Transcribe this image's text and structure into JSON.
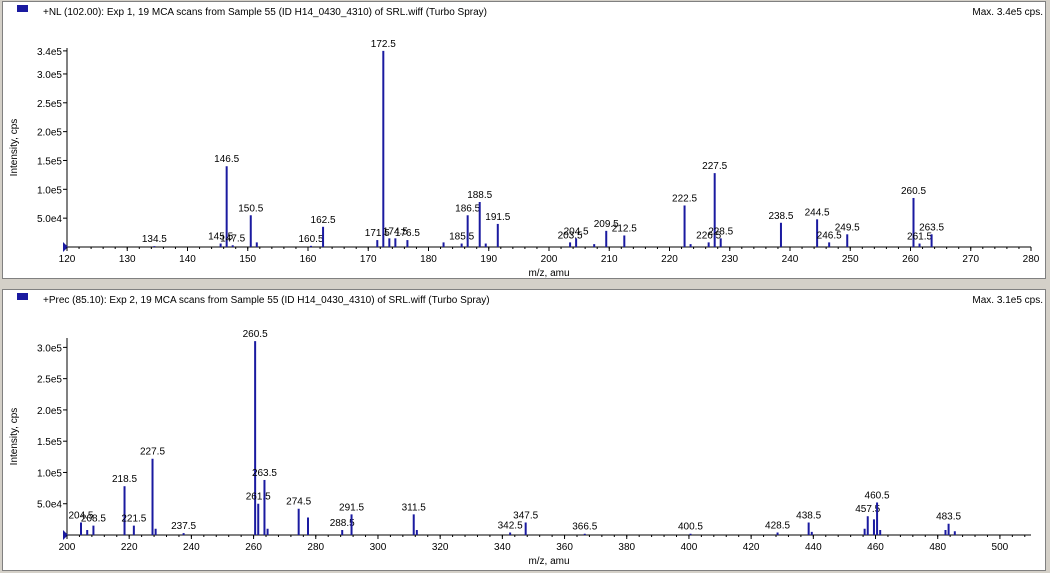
{
  "colors": {
    "peak": "#1a1aa0",
    "axis": "#000000",
    "marker": "#1a1aa0"
  },
  "chart_data": [
    {
      "type": "bar",
      "title": "+NL (102.00): Exp 1, 19 MCA scans from Sample 55 (ID H14_0430_4310) of SRL.wiff (Turbo Spray)",
      "max_label": "Max. 3.4e5 cps.",
      "xlabel": "m/z, amu",
      "ylabel": "Intensity, cps",
      "xlim": [
        120,
        280
      ],
      "ylim": [
        0,
        345000
      ],
      "xticks": [
        120,
        130,
        140,
        150,
        160,
        170,
        180,
        190,
        200,
        210,
        220,
        230,
        240,
        250,
        260,
        270,
        280
      ],
      "yticks": [
        {
          "v": 50000,
          "label": "5.0e4"
        },
        {
          "v": 100000,
          "label": "1.0e5"
        },
        {
          "v": 150000,
          "label": "1.5e5"
        },
        {
          "v": 200000,
          "label": "2.0e5"
        },
        {
          "v": 250000,
          "label": "2.5e5"
        },
        {
          "v": 300000,
          "label": "3.0e5"
        },
        {
          "v": 340000,
          "label": "3.4e5"
        }
      ],
      "peaks": [
        {
          "x": 134.5,
          "y": 1500,
          "label": "134.5"
        },
        {
          "x": 145.5,
          "y": 6000,
          "label": "145.5"
        },
        {
          "x": 146.5,
          "y": 140000,
          "label": "146.5"
        },
        {
          "x": 147.5,
          "y": 3000,
          "label": "147.5"
        },
        {
          "x": 150.5,
          "y": 55000,
          "label": "150.5"
        },
        {
          "x": 151.5,
          "y": 8000,
          "label": ""
        },
        {
          "x": 160.5,
          "y": 2000,
          "label": "160.5"
        },
        {
          "x": 162.5,
          "y": 35000,
          "label": "162.5"
        },
        {
          "x": 171.5,
          "y": 12000,
          "label": "171.5"
        },
        {
          "x": 172.5,
          "y": 340000,
          "label": "172.5"
        },
        {
          "x": 173.5,
          "y": 15000,
          "label": ""
        },
        {
          "x": 174.5,
          "y": 15000,
          "label": "174.5"
        },
        {
          "x": 176.5,
          "y": 12000,
          "label": "176.5"
        },
        {
          "x": 182.5,
          "y": 8000,
          "label": ""
        },
        {
          "x": 185.5,
          "y": 6000,
          "label": "185.5"
        },
        {
          "x": 186.5,
          "y": 55000,
          "label": "186.5"
        },
        {
          "x": 188.5,
          "y": 78000,
          "label": "188.5"
        },
        {
          "x": 189.5,
          "y": 6000,
          "label": ""
        },
        {
          "x": 191.5,
          "y": 40000,
          "label": "191.5"
        },
        {
          "x": 203.5,
          "y": 8000,
          "label": "203.5"
        },
        {
          "x": 204.5,
          "y": 15000,
          "label": "204.5"
        },
        {
          "x": 207.5,
          "y": 5000,
          "label": ""
        },
        {
          "x": 209.5,
          "y": 28000,
          "label": "209.5"
        },
        {
          "x": 212.5,
          "y": 20000,
          "label": "212.5"
        },
        {
          "x": 222.5,
          "y": 72000,
          "label": "222.5"
        },
        {
          "x": 223.5,
          "y": 5000,
          "label": ""
        },
        {
          "x": 226.5,
          "y": 8000,
          "label": "226.5"
        },
        {
          "x": 227.5,
          "y": 128000,
          "label": "227.5"
        },
        {
          "x": 228.5,
          "y": 15000,
          "label": "228.5"
        },
        {
          "x": 238.5,
          "y": 42000,
          "label": "238.5"
        },
        {
          "x": 244.5,
          "y": 48000,
          "label": "244.5"
        },
        {
          "x": 246.5,
          "y": 8000,
          "label": "246.5"
        },
        {
          "x": 249.5,
          "y": 22000,
          "label": "249.5"
        },
        {
          "x": 260.5,
          "y": 85000,
          "label": "260.5"
        },
        {
          "x": 261.5,
          "y": 6000,
          "label": "261.5"
        },
        {
          "x": 263.5,
          "y": 22000,
          "label": "263.5"
        }
      ]
    },
    {
      "type": "bar",
      "title": "+Prec (85.10): Exp 2, 19 MCA scans from Sample 55 (ID H14_0430_4310) of SRL.wiff (Turbo Spray)",
      "max_label": "Max. 3.1e5 cps.",
      "xlabel": "m/z, amu",
      "ylabel": "Intensity, cps",
      "xlim": [
        200,
        510
      ],
      "ylim": [
        0,
        315000
      ],
      "xticks": [
        200,
        220,
        240,
        260,
        280,
        300,
        320,
        340,
        360,
        380,
        400,
        420,
        440,
        460,
        480,
        500
      ],
      "yticks": [
        {
          "v": 50000,
          "label": "5.0e4"
        },
        {
          "v": 100000,
          "label": "1.0e5"
        },
        {
          "v": 150000,
          "label": "1.5e5"
        },
        {
          "v": 200000,
          "label": "2.0e5"
        },
        {
          "v": 250000,
          "label": "2.5e5"
        },
        {
          "v": 300000,
          "label": "3.0e5"
        }
      ],
      "peaks": [
        {
          "x": 204.5,
          "y": 20000,
          "label": "204.5"
        },
        {
          "x": 206.5,
          "y": 8000,
          "label": ""
        },
        {
          "x": 208.5,
          "y": 15000,
          "label": "208.5"
        },
        {
          "x": 218.5,
          "y": 78000,
          "label": "218.5"
        },
        {
          "x": 221.5,
          "y": 15000,
          "label": "221.5"
        },
        {
          "x": 227.5,
          "y": 122000,
          "label": "227.5"
        },
        {
          "x": 228.5,
          "y": 10000,
          "label": ""
        },
        {
          "x": 237.5,
          "y": 3000,
          "label": "237.5"
        },
        {
          "x": 260.5,
          "y": 310000,
          "label": "260.5"
        },
        {
          "x": 261.5,
          "y": 50000,
          "label": "261.5"
        },
        {
          "x": 263.5,
          "y": 88000,
          "label": "263.5"
        },
        {
          "x": 264.5,
          "y": 10000,
          "label": ""
        },
        {
          "x": 274.5,
          "y": 42000,
          "label": "274.5"
        },
        {
          "x": 277.5,
          "y": 28000,
          "label": ""
        },
        {
          "x": 288.5,
          "y": 8000,
          "label": "288.5"
        },
        {
          "x": 291.5,
          "y": 33000,
          "label": "291.5"
        },
        {
          "x": 311.5,
          "y": 33000,
          "label": "311.5"
        },
        {
          "x": 312.5,
          "y": 8000,
          "label": ""
        },
        {
          "x": 342.5,
          "y": 4000,
          "label": "342.5"
        },
        {
          "x": 347.5,
          "y": 20000,
          "label": "347.5"
        },
        {
          "x": 366.5,
          "y": 2000,
          "label": "366.5"
        },
        {
          "x": 400.5,
          "y": 2000,
          "label": "400.5"
        },
        {
          "x": 428.5,
          "y": 4000,
          "label": "428.5"
        },
        {
          "x": 438.5,
          "y": 20000,
          "label": "438.5"
        },
        {
          "x": 439.5,
          "y": 5000,
          "label": ""
        },
        {
          "x": 456.5,
          "y": 10000,
          "label": ""
        },
        {
          "x": 457.5,
          "y": 30000,
          "label": "457.5"
        },
        {
          "x": 459.5,
          "y": 25000,
          "label": ""
        },
        {
          "x": 460.5,
          "y": 52000,
          "label": "460.5"
        },
        {
          "x": 461.5,
          "y": 8000,
          "label": ""
        },
        {
          "x": 482.5,
          "y": 8000,
          "label": ""
        },
        {
          "x": 483.5,
          "y": 18000,
          "label": "483.5"
        },
        {
          "x": 485.5,
          "y": 6000,
          "label": ""
        }
      ]
    }
  ]
}
